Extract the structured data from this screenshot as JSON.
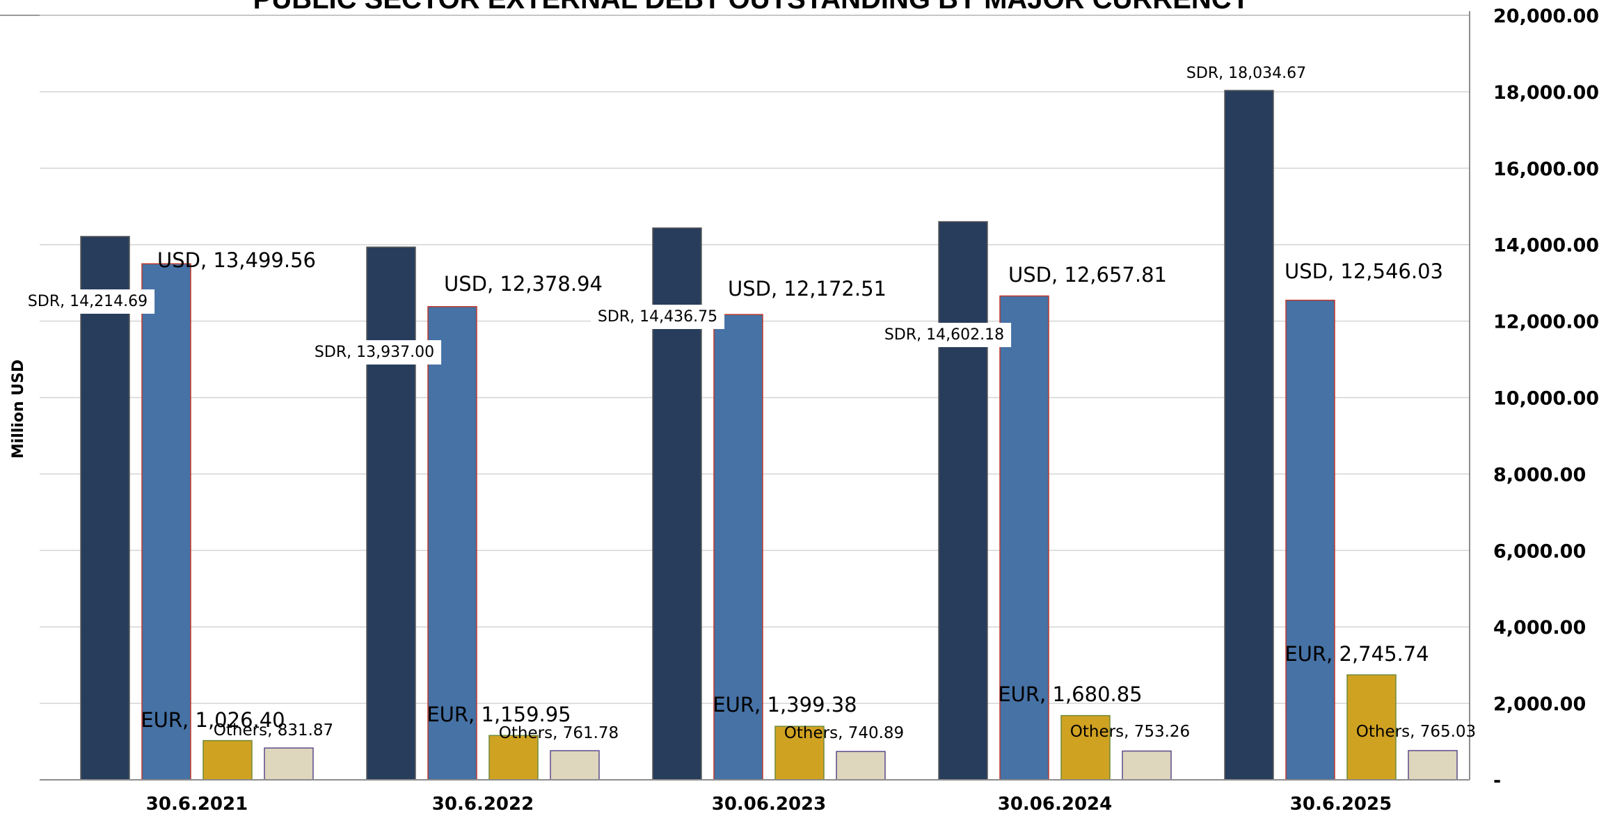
{
  "chart_data": {
    "type": "bar",
    "title": "PUBLIC SECTOR EXTERNAL DEBT OUTSTANDING BY MAJOR CURRENCY",
    "xlabel": "",
    "ylabel": "Million USD",
    "ylim": [
      0,
      20000
    ],
    "y_axis_position": "right",
    "y_ticks": [
      "-",
      "2,000.00",
      "4,000.00",
      "6,000.00",
      "8,000.00",
      "10,000.00",
      "12,000.00",
      "14,000.00",
      "16,000.00",
      "18,000.00",
      "20,000.00"
    ],
    "grid": true,
    "legend": "none",
    "categories": [
      "30.6.2021",
      "30.6.2022",
      "30.06.2023",
      "30.06.2024",
      "30.6.2025"
    ],
    "series": [
      {
        "name": "SDR",
        "color": "#283d5c",
        "values": [
          14214.69,
          13937.0,
          14436.75,
          14602.18,
          18034.67
        ],
        "labels": [
          "SDR,  14,214.69",
          "SDR,  13,937.00",
          "SDR,  14,436.75",
          "SDR,  14,602.18",
          "SDR,  18,034.67"
        ]
      },
      {
        "name": "USD",
        "color": "#4672a5",
        "values": [
          13499.56,
          12378.94,
          12172.51,
          12657.81,
          12546.03
        ],
        "labels": [
          "USD,  13,499.56",
          "USD,  12,378.94",
          "USD,  12,172.51",
          "USD,  12,657.81",
          "USD,  12,546.03"
        ]
      },
      {
        "name": "EUR",
        "color": "#d0a222",
        "values": [
          1026.4,
          1159.95,
          1399.38,
          1680.85,
          2745.74
        ],
        "labels": [
          "EUR,  1,026.40",
          "EUR,  1,159.95",
          "EUR,  1,399.38",
          "EUR,  1,680.85",
          "EUR,  2,745.74"
        ]
      },
      {
        "name": "Others",
        "color": "#ded6bd",
        "values": [
          831.87,
          761.78,
          740.89,
          753.26,
          765.03
        ],
        "labels": [
          "Others,  831.87",
          "Others,  761.78",
          "Others,  740.89",
          "Others,  753.26",
          "Others,  765.03"
        ]
      }
    ]
  }
}
